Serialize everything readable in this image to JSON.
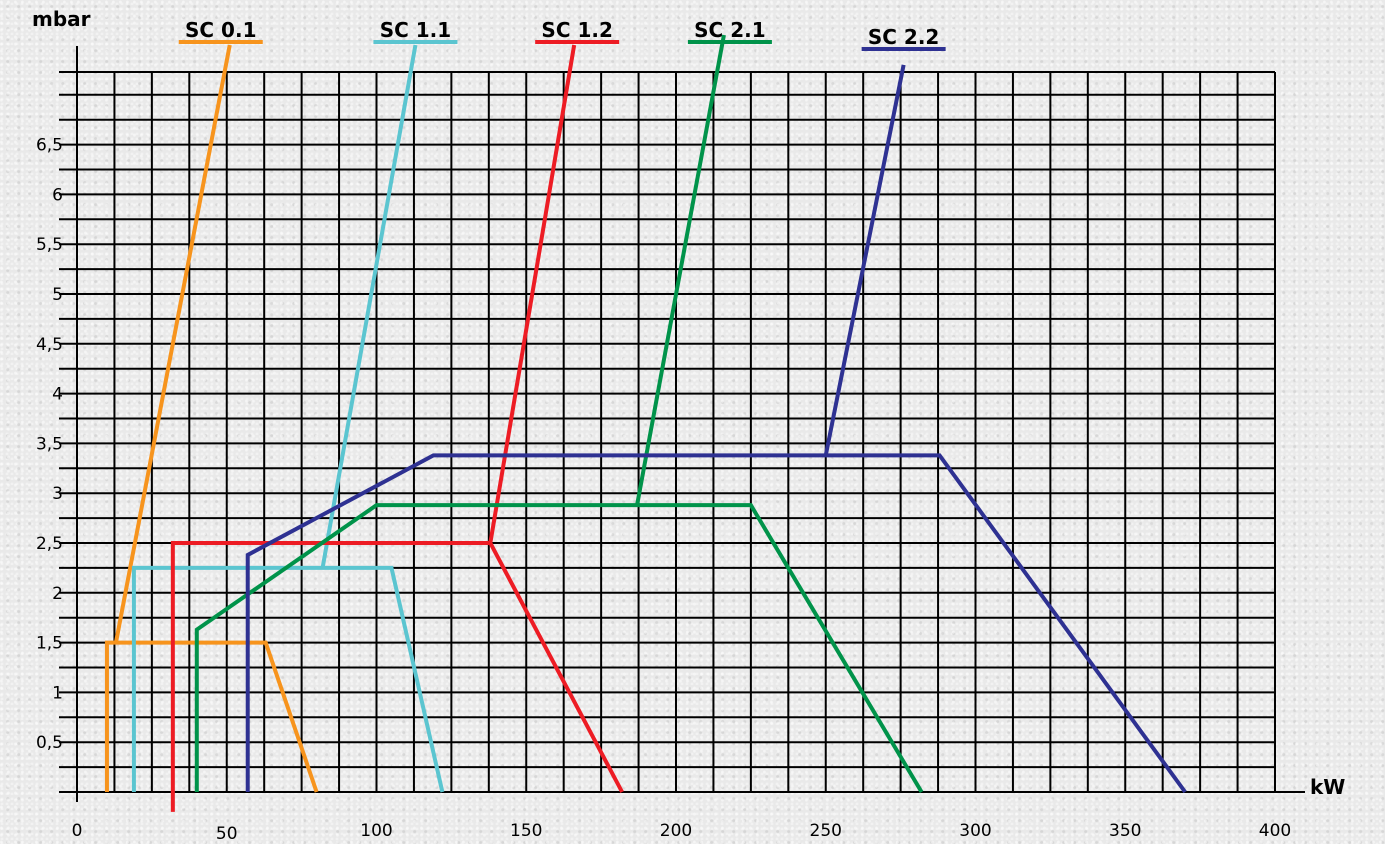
{
  "chart_data": {
    "type": "line",
    "xlabel": "kW",
    "ylabel": "mbar",
    "xlim": [
      0,
      400
    ],
    "ylim": [
      0,
      7.2
    ],
    "grid": true,
    "x_ticks": [
      {
        "value": 0,
        "label": "0"
      },
      {
        "value": 50,
        "label": "50"
      },
      {
        "value": 100,
        "label": "100"
      },
      {
        "value": 150,
        "label": "150"
      },
      {
        "value": 200,
        "label": "200"
      },
      {
        "value": 250,
        "label": "250"
      },
      {
        "value": 300,
        "label": "300"
      },
      {
        "value": 350,
        "label": "350"
      },
      {
        "value": 400,
        "label": "400"
      }
    ],
    "y_ticks": [
      {
        "value": 0.5,
        "label": "0,5"
      },
      {
        "value": 1,
        "label": "1"
      },
      {
        "value": 1.5,
        "label": "1,5"
      },
      {
        "value": 2,
        "label": "2"
      },
      {
        "value": 2.5,
        "label": "2,5"
      },
      {
        "value": 3,
        "label": "3"
      },
      {
        "value": 3.5,
        "label": "3,5"
      },
      {
        "value": 4,
        "label": "4"
      },
      {
        "value": 4.5,
        "label": "4,5"
      },
      {
        "value": 5,
        "label": "5"
      },
      {
        "value": 5.5,
        "label": "5,5"
      },
      {
        "value": 6,
        "label": "6"
      },
      {
        "value": 6.5,
        "label": "6,5"
      }
    ],
    "legend_placement": "top",
    "series": [
      {
        "name": "SC 0.1",
        "color": "#f7941d",
        "label_x": 48,
        "points": [
          [
            10,
            0
          ],
          [
            10,
            1.5
          ],
          [
            63,
            1.5
          ],
          [
            80,
            0
          ]
        ],
        "working_line": [
          [
            13,
            1.5
          ],
          [
            51,
            7.5
          ]
        ]
      },
      {
        "name": "SC 1.1",
        "color": "#5bc5d0",
        "label_x": 113,
        "points": [
          [
            19,
            0
          ],
          [
            19,
            2.25
          ],
          [
            105,
            2.25
          ],
          [
            122,
            0
          ]
        ],
        "working_line": [
          [
            82,
            2.25
          ],
          [
            113,
            7.5
          ]
        ]
      },
      {
        "name": "SC 1.2",
        "color": "#ed1c24",
        "label_x": 167,
        "points": [
          [
            32,
            -0.2
          ],
          [
            32,
            2.5
          ],
          [
            138,
            2.5
          ],
          [
            182,
            0
          ]
        ],
        "working_line": [
          [
            138,
            2.5
          ],
          [
            166,
            7.5
          ]
        ]
      },
      {
        "name": "SC 2.1",
        "color": "#00934a",
        "label_x": 218,
        "points": [
          [
            40,
            0
          ],
          [
            40,
            1.63
          ],
          [
            100,
            2.88
          ],
          [
            225,
            2.88
          ],
          [
            282,
            0
          ]
        ],
        "working_line": [
          [
            187,
            2.88
          ],
          [
            216,
            7.6
          ]
        ]
      },
      {
        "name": "SC 2.2",
        "color": "#2e3192",
        "label_x": 276,
        "points": [
          [
            57,
            0
          ],
          [
            57,
            2.38
          ],
          [
            119,
            3.38
          ],
          [
            288,
            3.38
          ],
          [
            370,
            0
          ]
        ],
        "working_line": [
          [
            250,
            3.38
          ],
          [
            276,
            7.3
          ]
        ]
      }
    ]
  }
}
